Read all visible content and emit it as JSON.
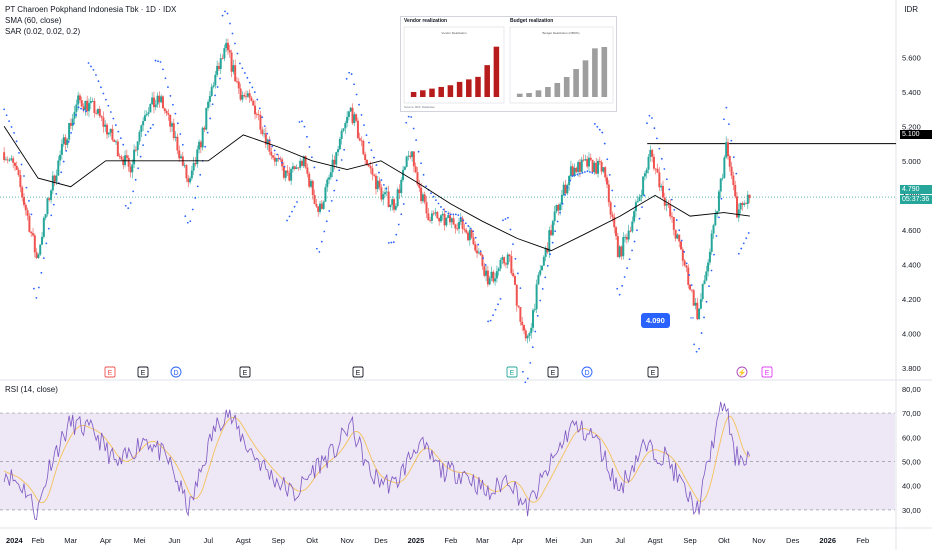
{
  "header": {
    "title": "PT Charoen Pokphand Indonesia Tbk · 1D · IDX",
    "sma_label": "SMA (60, close)",
    "sar_label": "SAR (0.02, 0.02, 0.2)",
    "currency": "IDR"
  },
  "price_axis": {
    "ticks": [
      "5.600",
      "5.400",
      "5.200",
      "5.000",
      "4.800",
      "4.600",
      "4.400",
      "4.200",
      "4.000",
      "3.800"
    ],
    "resistance_label": "5.100",
    "last_price": "4.790",
    "countdown": "05:37:36"
  },
  "low_callout": "4.090",
  "rsi": {
    "label": "RSI (14, close)",
    "ticks": [
      "80,00",
      "70,00",
      "60,00",
      "50,00",
      "40,00",
      "30,00"
    ]
  },
  "time_axis": [
    "2024",
    "Feb",
    "Mar",
    "Apr",
    "Mei",
    "Jun",
    "Jul",
    "Agst",
    "Sep",
    "Okt",
    "Nov",
    "Des",
    "2025",
    "Feb",
    "Mar",
    "Apr",
    "Mei",
    "Jun",
    "Jul",
    "Agst",
    "Sep",
    "Okt",
    "Nov",
    "Des",
    "2026",
    "Feb"
  ],
  "events": [
    "E",
    "E",
    "D",
    "E",
    "E",
    "E",
    "E",
    "D",
    "E",
    "⚡",
    "E"
  ],
  "colors": {
    "up": "#26a69a",
    "down": "#ef5350",
    "sma": "#000000",
    "sar": "#2962ff",
    "rsi": "#7e57c2",
    "rsi_ma": "#f5c15a",
    "rsi_band": "#ede7f6",
    "resistance": "#000000"
  },
  "inset": {
    "vendor_title": "Vendor realization",
    "vendor_subtitle": "Vendor Realization",
    "budget_title": "Budget realization",
    "budget_subtitle": "Budget Realization (CBR%)",
    "source": "Source: BKF Database"
  },
  "chart_data": {
    "type": "candlestick",
    "title": "PT Charoen Pokphand Indonesia Tbk · 1D · IDX",
    "xlabel": "",
    "ylabel": "",
    "ylim": [
      3800,
      5700
    ],
    "price_path": [
      [
        "2024-01-02",
        5050
      ],
      [
        "2024-01-12",
        4950
      ],
      [
        "2024-01-22",
        4700
      ],
      [
        "2024-01-31",
        4430
      ],
      [
        "2024-02-12",
        4830
      ],
      [
        "2024-02-26",
        5150
      ],
      [
        "2024-03-08",
        5350
      ],
      [
        "2024-03-22",
        5300
      ],
      [
        "2024-04-05",
        5150
      ],
      [
        "2024-04-22",
        4950
      ],
      [
        "2024-05-06",
        5300
      ],
      [
        "2024-05-20",
        5350
      ],
      [
        "2024-06-03",
        5100
      ],
      [
        "2024-06-14",
        4850
      ],
      [
        "2024-06-24",
        5100
      ],
      [
        "2024-07-05",
        5450
      ],
      [
        "2024-07-17",
        5650
      ],
      [
        "2024-07-29",
        5400
      ],
      [
        "2024-08-12",
        5300
      ],
      [
        "2024-08-26",
        5050
      ],
      [
        "2024-09-09",
        4900
      ],
      [
        "2024-09-23",
        5000
      ],
      [
        "2024-10-07",
        4700
      ],
      [
        "2024-10-21",
        5000
      ],
      [
        "2024-11-04",
        5300
      ],
      [
        "2024-11-18",
        5000
      ],
      [
        "2024-12-02",
        4800
      ],
      [
        "2024-12-13",
        4750
      ],
      [
        "2024-12-27",
        5050
      ],
      [
        "2025-01-10",
        4700
      ],
      [
        "2025-01-24",
        4650
      ],
      [
        "2025-02-07",
        4650
      ],
      [
        "2025-02-21",
        4550
      ],
      [
        "2025-03-07",
        4300
      ],
      [
        "2025-03-24",
        4450
      ],
      [
        "2025-04-09",
        3920
      ],
      [
        "2025-04-21",
        4350
      ],
      [
        "2025-05-05",
        4700
      ],
      [
        "2025-05-19",
        4950
      ],
      [
        "2025-06-02",
        4980
      ],
      [
        "2025-06-16",
        4950
      ],
      [
        "2025-06-30",
        4450
      ],
      [
        "2025-07-14",
        4700
      ],
      [
        "2025-07-28",
        5050
      ],
      [
        "2025-08-11",
        4750
      ],
      [
        "2025-08-25",
        4450
      ],
      [
        "2025-09-08",
        4100
      ],
      [
        "2025-09-22",
        4600
      ],
      [
        "2025-10-03",
        5080
      ],
      [
        "2025-10-13",
        4700
      ],
      [
        "2025-10-24",
        4790
      ]
    ],
    "sma": [
      [
        "2024-01-02",
        5200
      ],
      [
        "2024-02-01",
        4900
      ],
      [
        "2024-03-01",
        4850
      ],
      [
        "2024-04-01",
        5000
      ],
      [
        "2024-05-01",
        5000
      ],
      [
        "2024-06-01",
        5000
      ],
      [
        "2024-07-01",
        5000
      ],
      [
        "2024-08-01",
        5150
      ],
      [
        "2024-09-01",
        5080
      ],
      [
        "2024-10-01",
        5000
      ],
      [
        "2024-11-01",
        4950
      ],
      [
        "2024-12-01",
        5000
      ],
      [
        "2025-01-01",
        4880
      ],
      [
        "2025-02-01",
        4750
      ],
      [
        "2025-03-01",
        4650
      ],
      [
        "2025-04-01",
        4550
      ],
      [
        "2025-05-01",
        4480
      ],
      [
        "2025-06-01",
        4580
      ],
      [
        "2025-07-01",
        4680
      ],
      [
        "2025-08-01",
        4800
      ],
      [
        "2025-09-01",
        4680
      ],
      [
        "2025-10-01",
        4700
      ],
      [
        "2025-10-24",
        4680
      ]
    ],
    "resistance": 5100,
    "last": 4790,
    "low": 4090,
    "rsi": {
      "ylim": [
        25,
        82
      ],
      "bands": [
        30,
        50,
        70
      ],
      "values": [
        [
          "2024-01-02",
          46
        ],
        [
          "2024-01-22",
          38
        ],
        [
          "2024-01-31",
          28
        ],
        [
          "2024-02-12",
          50
        ],
        [
          "2024-03-01",
          66
        ],
        [
          "2024-03-22",
          62
        ],
        [
          "2024-04-12",
          48
        ],
        [
          "2024-05-06",
          60
        ],
        [
          "2024-05-27",
          50
        ],
        [
          "2024-06-14",
          30
        ],
        [
          "2024-07-05",
          62
        ],
        [
          "2024-07-17",
          71
        ],
        [
          "2024-08-05",
          56
        ],
        [
          "2024-08-26",
          44
        ],
        [
          "2024-09-16",
          36
        ],
        [
          "2024-10-04",
          48
        ],
        [
          "2024-10-21",
          54
        ],
        [
          "2024-11-04",
          66
        ],
        [
          "2024-11-22",
          44
        ],
        [
          "2024-12-13",
          40
        ],
        [
          "2025-01-03",
          58
        ],
        [
          "2025-01-24",
          46
        ],
        [
          "2025-02-14",
          45
        ],
        [
          "2025-03-07",
          36
        ],
        [
          "2025-03-24",
          44
        ],
        [
          "2025-04-09",
          30
        ],
        [
          "2025-05-02",
          50
        ],
        [
          "2025-05-19",
          65
        ],
        [
          "2025-06-09",
          60
        ],
        [
          "2025-06-30",
          38
        ],
        [
          "2025-07-21",
          56
        ],
        [
          "2025-08-11",
          52
        ],
        [
          "2025-09-01",
          34
        ],
        [
          "2025-09-08",
          30
        ],
        [
          "2025-09-24",
          64
        ],
        [
          "2025-10-02",
          76
        ],
        [
          "2025-10-10",
          52
        ],
        [
          "2025-10-24",
          52
        ]
      ]
    },
    "inset_vendor": {
      "type": "bar",
      "categories": [
        "Jan-25",
        "Feb-25",
        "Mar-25",
        "Apr-25",
        "May-25",
        "Jun-25",
        "Jul-25",
        "Aug-25",
        "Sep-25",
        "Oct-25"
      ],
      "values": [
        0.6,
        0.8,
        1.0,
        1.2,
        1.4,
        1.8,
        2.1,
        2.4,
        3.8,
        6.0
      ]
    },
    "inset_budget": {
      "type": "bar",
      "categories": [
        "Jan-25",
        "Feb-25",
        "Mar-25",
        "Apr-25",
        "May-25",
        "Jun-25",
        "Jul-25",
        "Aug-25",
        "Sep-25",
        "Oct-25"
      ],
      "values": [
        5,
        6,
        10,
        15,
        21,
        30,
        42,
        55,
        73,
        75
      ]
    }
  }
}
